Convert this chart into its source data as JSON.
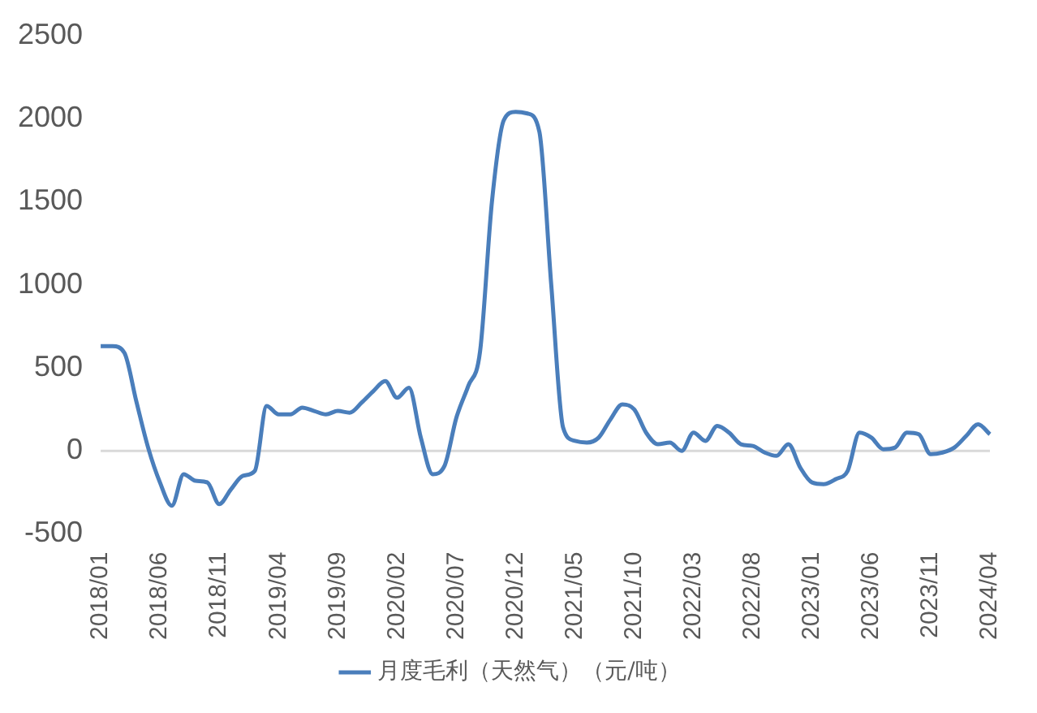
{
  "chart_data": {
    "type": "line",
    "categories": [
      "2018/01",
      null,
      null,
      null,
      null,
      "2018/06",
      null,
      null,
      null,
      null,
      "2018/11",
      null,
      null,
      null,
      null,
      "2019/04",
      null,
      null,
      null,
      null,
      "2019/09",
      null,
      null,
      null,
      null,
      "2020/02",
      null,
      null,
      null,
      null,
      "2020/07",
      null,
      null,
      null,
      null,
      "2020/12",
      null,
      null,
      null,
      null,
      "2021/05",
      null,
      null,
      null,
      null,
      "2021/10",
      null,
      null,
      null,
      null,
      "2022/03",
      null,
      null,
      null,
      null,
      "2022/08",
      null,
      null,
      null,
      null,
      "2023/01",
      null,
      null,
      null,
      null,
      "2023/06",
      null,
      null,
      null,
      null,
      "2023/11",
      null,
      null,
      null,
      null,
      "2024/04"
    ],
    "series": [
      {
        "name": "月度毛利（天然气）（元/吨）",
        "color": "#4a7ebb",
        "values": [
          630,
          630,
          590,
          300,
          20,
          -190,
          -330,
          -140,
          -180,
          -190,
          -320,
          -230,
          -150,
          -120,
          270,
          220,
          220,
          260,
          240,
          220,
          240,
          230,
          290,
          360,
          420,
          320,
          380,
          80,
          -140,
          -90,
          200,
          390,
          600,
          1500,
          1990,
          2040,
          2030,
          1920,
          1000,
          140,
          60,
          50,
          80,
          190,
          280,
          250,
          110,
          40,
          50,
          0,
          110,
          60,
          150,
          110,
          40,
          30,
          -10,
          -30,
          40,
          -100,
          -190,
          -200,
          -170,
          -120,
          110,
          80,
          10,
          20,
          110,
          100,
          -20,
          -10,
          20,
          90,
          160,
          100
        ]
      }
    ],
    "ref_lines": [
      {
        "axis": "y",
        "value": 0,
        "color": "#d9d9d9"
      }
    ],
    "ylim": [
      -500,
      2500
    ],
    "yticks": [
      -500,
      0,
      500,
      1000,
      1500,
      2000,
      2500
    ],
    "grid": false,
    "legend": "bottom",
    "marker": "none",
    "line_style": "solid"
  }
}
